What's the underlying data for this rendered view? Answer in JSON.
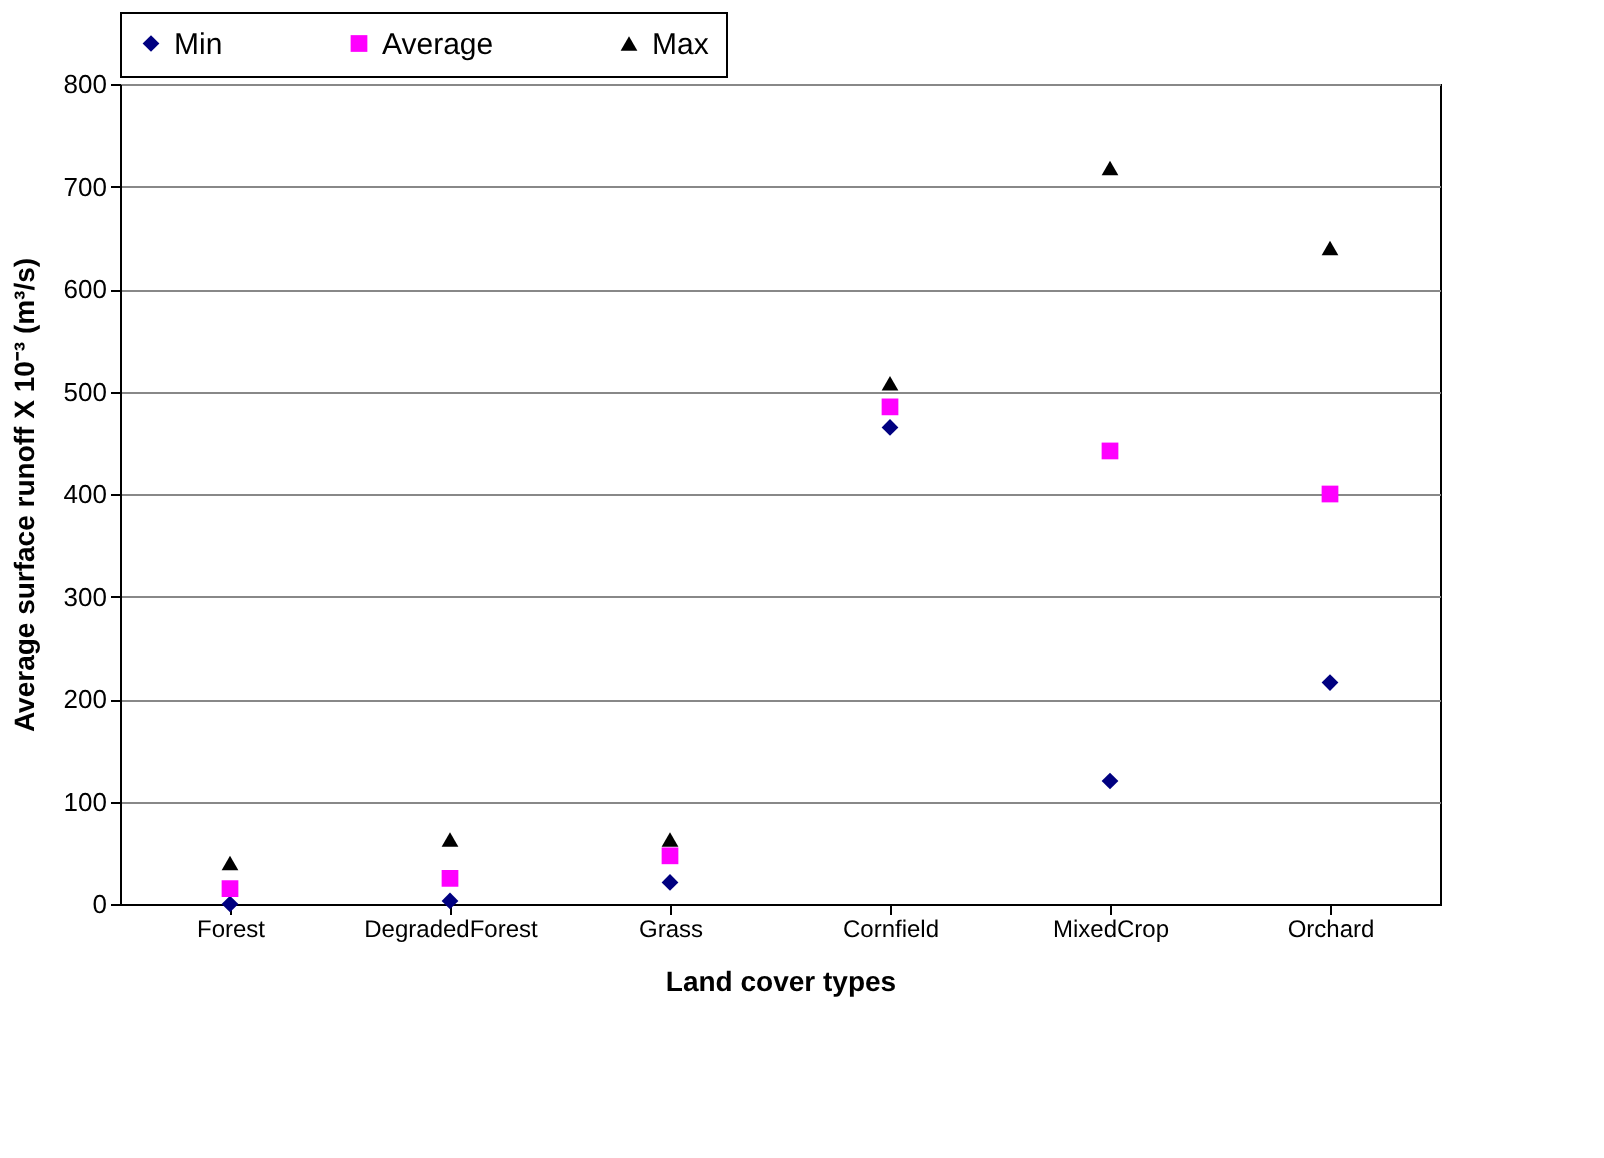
{
  "chart_data": {
    "type": "scatter",
    "xlabel": "Land cover types",
    "ylabel": "Average surface runoff X 10⁻³ (m³/s)",
    "categories": [
      "Forest",
      "DegradedForest",
      "Grass",
      "Cornfield",
      "MixedCrop",
      "Orchard"
    ],
    "series": [
      {
        "name": "Min",
        "color": "#000080",
        "marker": "diamond",
        "values": [
          0,
          3,
          21,
          465,
          120,
          216
        ]
      },
      {
        "name": "Average",
        "color": "#ff00ff",
        "marker": "square",
        "values": [
          15,
          25,
          47,
          485,
          442,
          400
        ]
      },
      {
        "name": "Max",
        "color": "#000000",
        "marker": "triangle",
        "values": [
          40,
          63,
          63,
          508,
          718,
          640
        ]
      }
    ],
    "ylim": [
      0,
      800
    ],
    "yticks": [
      0,
      100,
      200,
      300,
      400,
      500,
      600,
      700,
      800
    ],
    "grid": "y",
    "legend": "top"
  }
}
